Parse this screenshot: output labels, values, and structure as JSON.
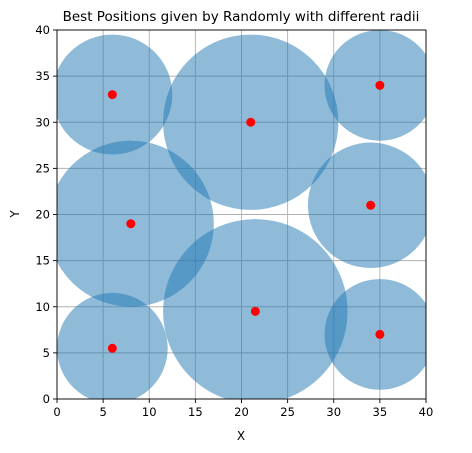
{
  "chart_data": {
    "type": "scatter",
    "title": "Best Positions given by Randomly with different radii",
    "xlabel": "X",
    "ylabel": "Y",
    "xlim": [
      0,
      40
    ],
    "ylim": [
      0,
      40
    ],
    "xticks": [
      "0",
      "5",
      "10",
      "15",
      "20",
      "25",
      "30",
      "35",
      "40"
    ],
    "yticks": [
      "0",
      "5",
      "10",
      "15",
      "20",
      "25",
      "30",
      "35",
      "40"
    ],
    "grid": true,
    "circle_color": "#1f77b4",
    "circle_alpha": 0.5,
    "point_color": "#ff0000",
    "points": [
      {
        "x": 6,
        "y": 33,
        "r": 6.5
      },
      {
        "x": 21,
        "y": 30,
        "r": 9.5
      },
      {
        "x": 35,
        "y": 34,
        "r": 6
      },
      {
        "x": 8,
        "y": 19,
        "r": 9
      },
      {
        "x": 34,
        "y": 21,
        "r": 6.8
      },
      {
        "x": 6,
        "y": 5.5,
        "r": 6
      },
      {
        "x": 21.5,
        "y": 9.5,
        "r": 10
      },
      {
        "x": 35,
        "y": 7,
        "r": 6
      }
    ]
  }
}
